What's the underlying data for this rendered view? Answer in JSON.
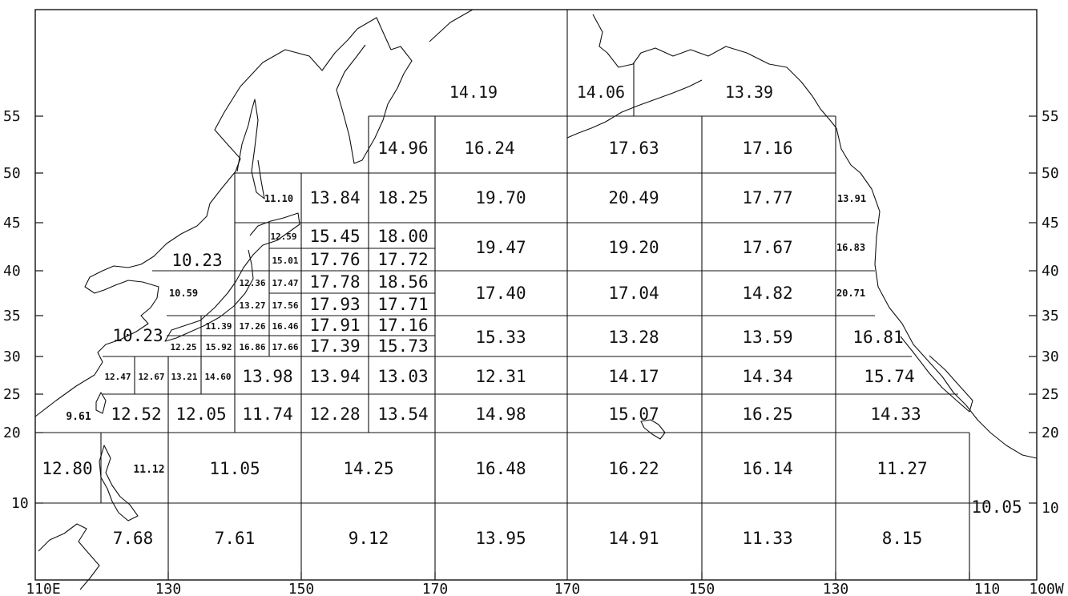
{
  "axes": {
    "lat_left": [
      "55",
      "50",
      "45",
      "40",
      "35",
      "30",
      "25",
      "20",
      "10"
    ],
    "lat_right": [
      "55",
      "50",
      "45",
      "40",
      "35",
      "30",
      "25",
      "20",
      "10"
    ],
    "lon_bottom": [
      "110E",
      "130",
      "150",
      "170",
      "170",
      "150",
      "130",
      "110",
      "100W"
    ]
  },
  "cells": [
    "14.19",
    "14.06",
    "13.39",
    "14.96",
    "16.24",
    "17.63",
    "17.16",
    "11.10",
    "13.84",
    "18.25",
    "19.70",
    "20.49",
    "17.77",
    "13.91",
    "12.59",
    "15.45",
    "18.00",
    "19.47",
    "19.20",
    "17.67",
    "16.83",
    "10.23",
    "15.01",
    "17.76",
    "17.72",
    "10.59",
    "12.36",
    "17.47",
    "17.78",
    "18.56",
    "17.40",
    "17.04",
    "14.82",
    "20.71",
    "13.27",
    "17.56",
    "17.93",
    "17.71",
    "10.23",
    "11.39",
    "17.26",
    "16.46",
    "17.91",
    "17.16",
    "15.33",
    "13.28",
    "13.59",
    "16.81",
    "12.25",
    "15.92",
    "16.86",
    "17.66",
    "17.39",
    "15.73",
    "12.47",
    "12.67",
    "13.21",
    "14.60",
    "13.98",
    "13.94",
    "13.03",
    "12.31",
    "14.17",
    "14.34",
    "15.74",
    "9.61",
    "12.52",
    "12.05",
    "11.74",
    "12.28",
    "13.54",
    "14.98",
    "15.07",
    "16.25",
    "14.33",
    "12.80",
    "11.12",
    "11.05",
    "14.25",
    "16.48",
    "16.22",
    "16.14",
    "11.27",
    "10.05",
    "7.68",
    "7.61",
    "9.12",
    "13.95",
    "14.91",
    "11.33",
    "8.15"
  ]
}
